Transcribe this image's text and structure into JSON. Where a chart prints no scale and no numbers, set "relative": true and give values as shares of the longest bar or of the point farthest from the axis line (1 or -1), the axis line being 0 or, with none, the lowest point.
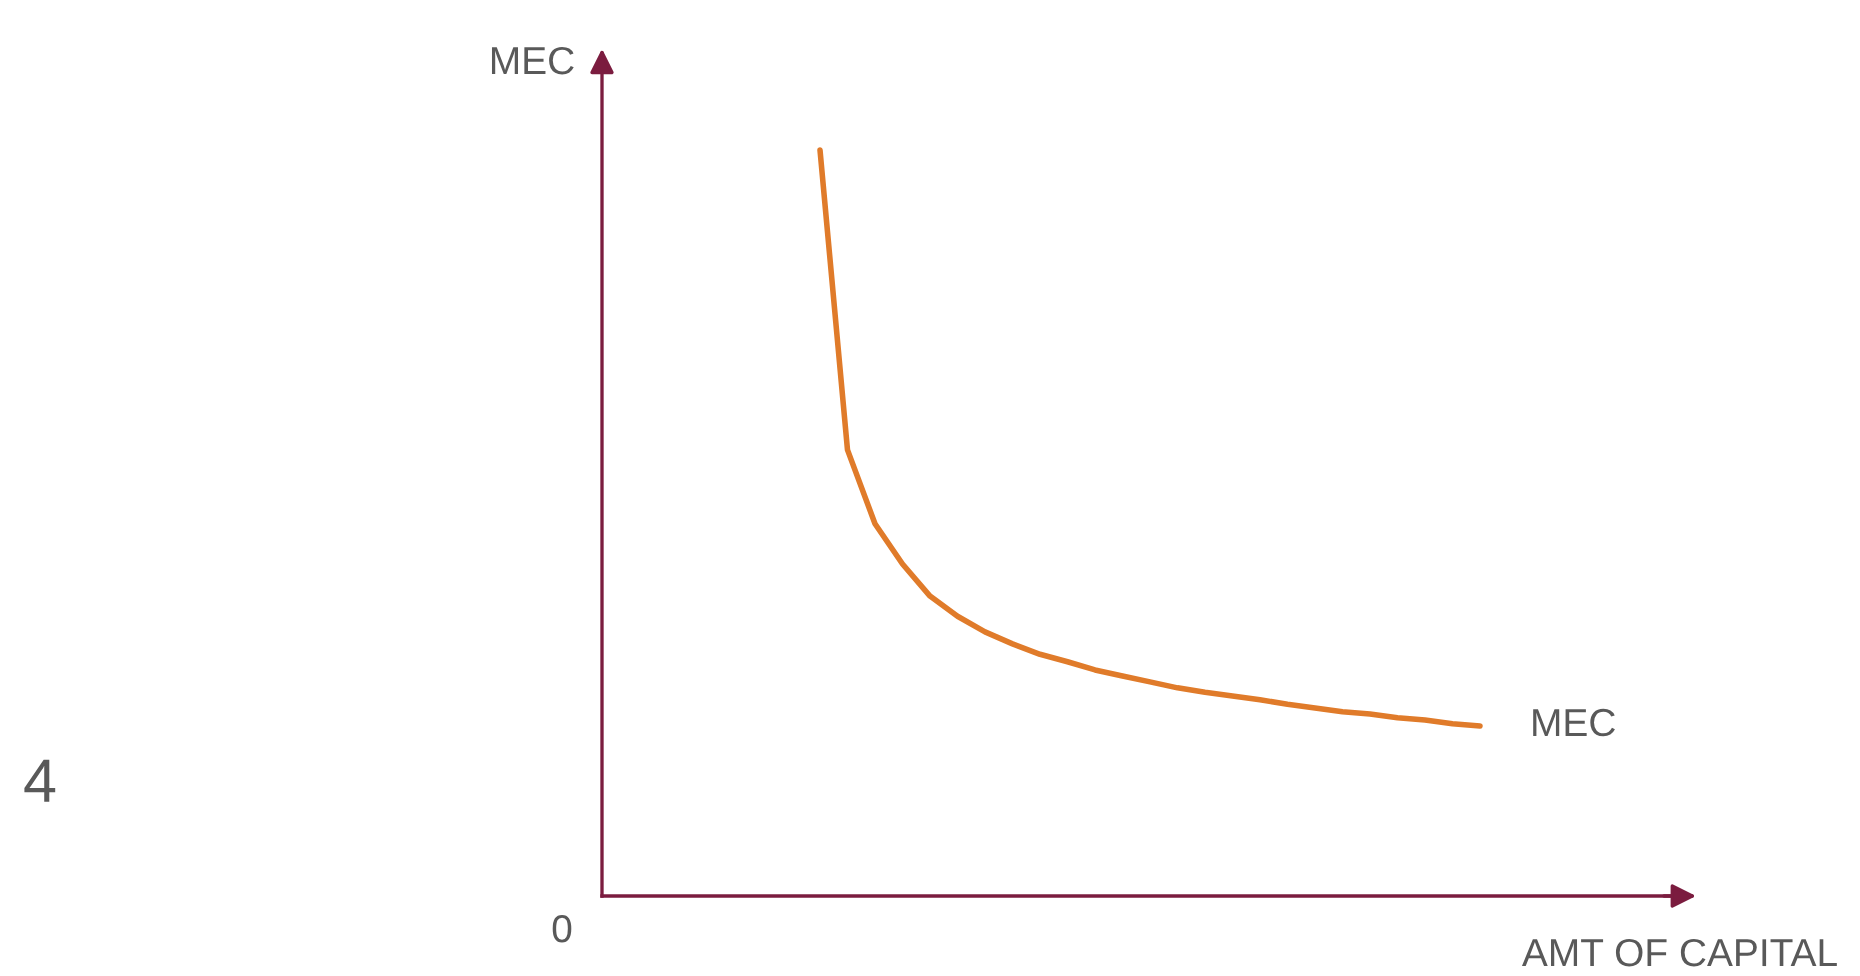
{
  "chart_data": {
    "type": "line",
    "relative": true,
    "xlabel": "AMT OF CAPITAL",
    "annotations": [
      "0",
      "4",
      "MEC"
    ],
    "categories": [
      null,
      null,
      null,
      null,
      null,
      null,
      null,
      null,
      null,
      null,
      null,
      null,
      null,
      null,
      null,
      null,
      null,
      null,
      null,
      null,
      null,
      null,
      null,
      null,
      null
    ],
    "series": [
      {
        "name": "MEC",
        "color": "#e07b2a",
        "values": [
          1,
          0.598,
          0.499,
          0.445,
          0.402,
          0.375,
          0.354,
          0.338,
          0.324,
          0.314,
          0.303,
          0.295,
          0.287,
          0.279,
          0.273,
          0.268,
          0.263,
          0.257,
          0.252,
          0.247,
          0.244,
          0.239,
          0.236,
          0.231,
          0.228
        ]
      }
    ],
    "legend": false,
    "marker": "none",
    "line_style": "solid"
  }
}
